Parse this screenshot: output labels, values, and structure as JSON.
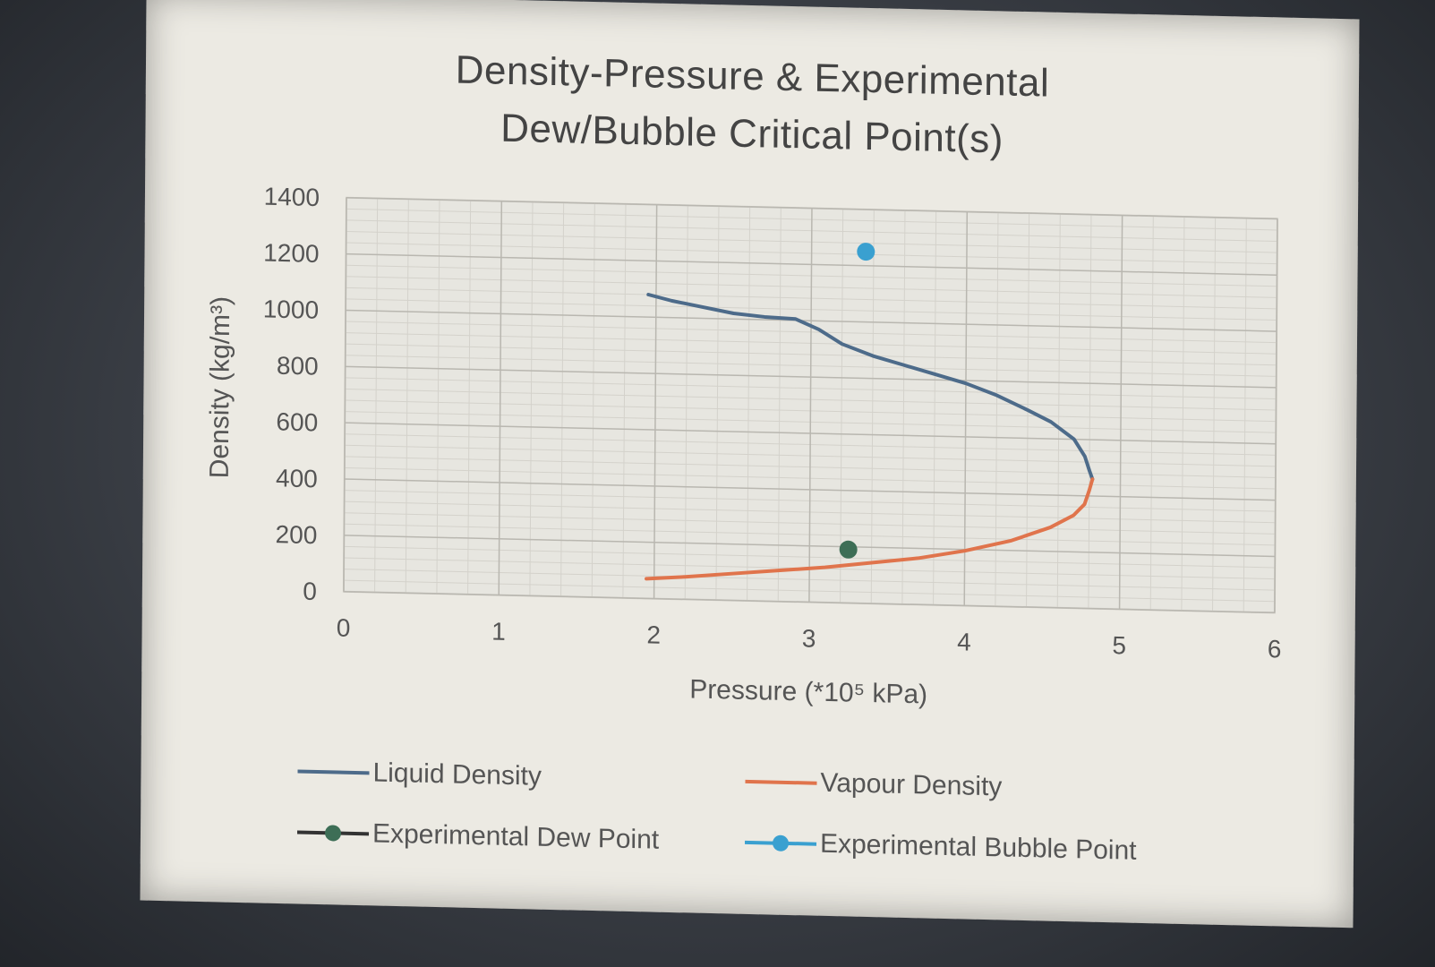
{
  "chart_data": {
    "type": "scatter",
    "title_lines": [
      "Density-Pressure & Experimental",
      "Dew/Bubble Critical Point(s)"
    ],
    "xlabel": "Pressure (*10⁵ kPa)",
    "ylabel": "Density (kg/m³)",
    "xlim": [
      0,
      6
    ],
    "ylim": [
      0,
      1400
    ],
    "x_ticks": [
      "0",
      "1",
      "2",
      "3",
      "4",
      "5",
      "6"
    ],
    "y_ticks": [
      "0",
      "200",
      "400",
      "600",
      "800",
      "1000",
      "1200",
      "1400"
    ],
    "grid": true,
    "legend_position": "bottom",
    "series": [
      {
        "name": "Liquid Density",
        "kind": "line",
        "color": "#4d6b8a",
        "x": [
          1.95,
          2.1,
          2.3,
          2.5,
          2.7,
          2.9,
          3.05,
          3.2,
          3.4,
          3.6,
          3.8,
          4.0,
          4.2,
          4.4,
          4.55,
          4.7,
          4.77,
          4.8,
          4.82
        ],
        "y": [
          1080,
          1060,
          1040,
          1020,
          1010,
          1005,
          970,
          920,
          880,
          850,
          820,
          790,
          750,
          700,
          660,
          600,
          540,
          490,
          460
        ]
      },
      {
        "name": "Vapour Density",
        "kind": "line",
        "color": "#e0744c",
        "x": [
          1.95,
          2.2,
          2.5,
          2.8,
          3.1,
          3.4,
          3.7,
          4.0,
          4.3,
          4.55,
          4.7,
          4.77,
          4.8,
          4.82
        ],
        "y": [
          70,
          80,
          95,
          110,
          125,
          145,
          165,
          195,
          235,
          285,
          330,
          370,
          420,
          460
        ]
      },
      {
        "name": "Experimental Dew Point",
        "kind": "point",
        "color": "#3d6e56",
        "x": [
          3.25
        ],
        "y": [
          190
        ]
      },
      {
        "name": "Experimental Bubble Point",
        "kind": "point",
        "color": "#3aa0d0",
        "x": [
          3.35
        ],
        "y": [
          1250
        ]
      }
    ]
  }
}
